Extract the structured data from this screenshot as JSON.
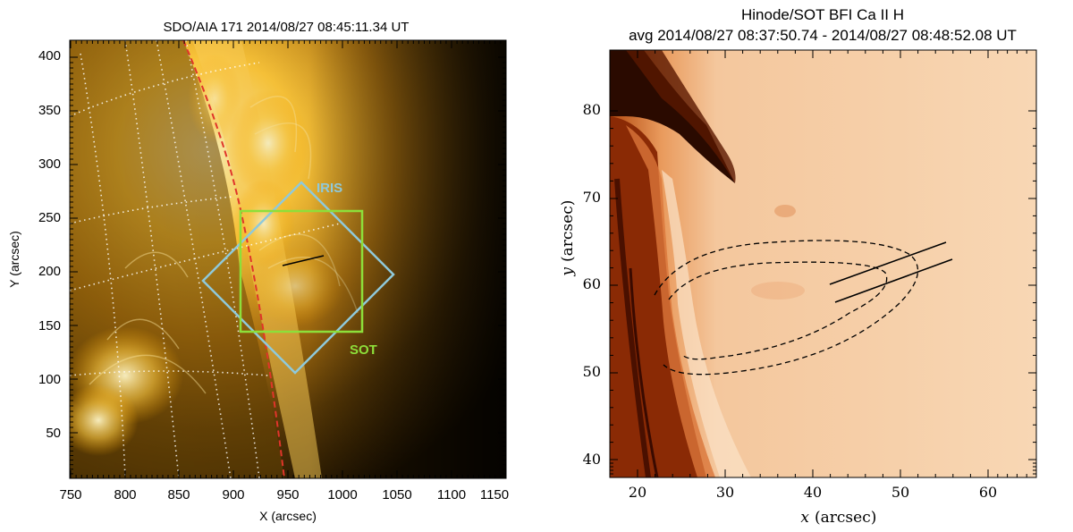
{
  "left_panel": {
    "title": "SDO/AIA 171 2014/08/27 08:45:11.34 UT",
    "xlabel": "X (arcsec)",
    "ylabel": "Y (arcsec)",
    "xticks": [
      "750",
      "800",
      "850",
      "900",
      "950",
      "1000",
      "1050",
      "1100",
      "1150"
    ],
    "yticks": [
      "50",
      "100",
      "150",
      "200",
      "250",
      "300",
      "350",
      "400"
    ],
    "iris_label": "IRIS",
    "sot_label": "SOT",
    "colors": {
      "iris": "#8fc9da",
      "sot": "#8ddf3a",
      "limb": "#e0352a",
      "slit": "#000000"
    }
  },
  "right_panel": {
    "title_line1": "Hinode/SOT BFI Ca II H",
    "title_line2": "avg 2014/08/27 08:37:50.74 - 2014/08/27 08:48:52.08 UT",
    "xlabel_var": "x",
    "xlabel_unit": "(arcsec)",
    "ylabel_var": "y",
    "ylabel_unit": "(arcsec)",
    "xticks": [
      "20",
      "30",
      "40",
      "50",
      "60"
    ],
    "yticks": [
      "40",
      "50",
      "60",
      "70",
      "80"
    ]
  }
}
